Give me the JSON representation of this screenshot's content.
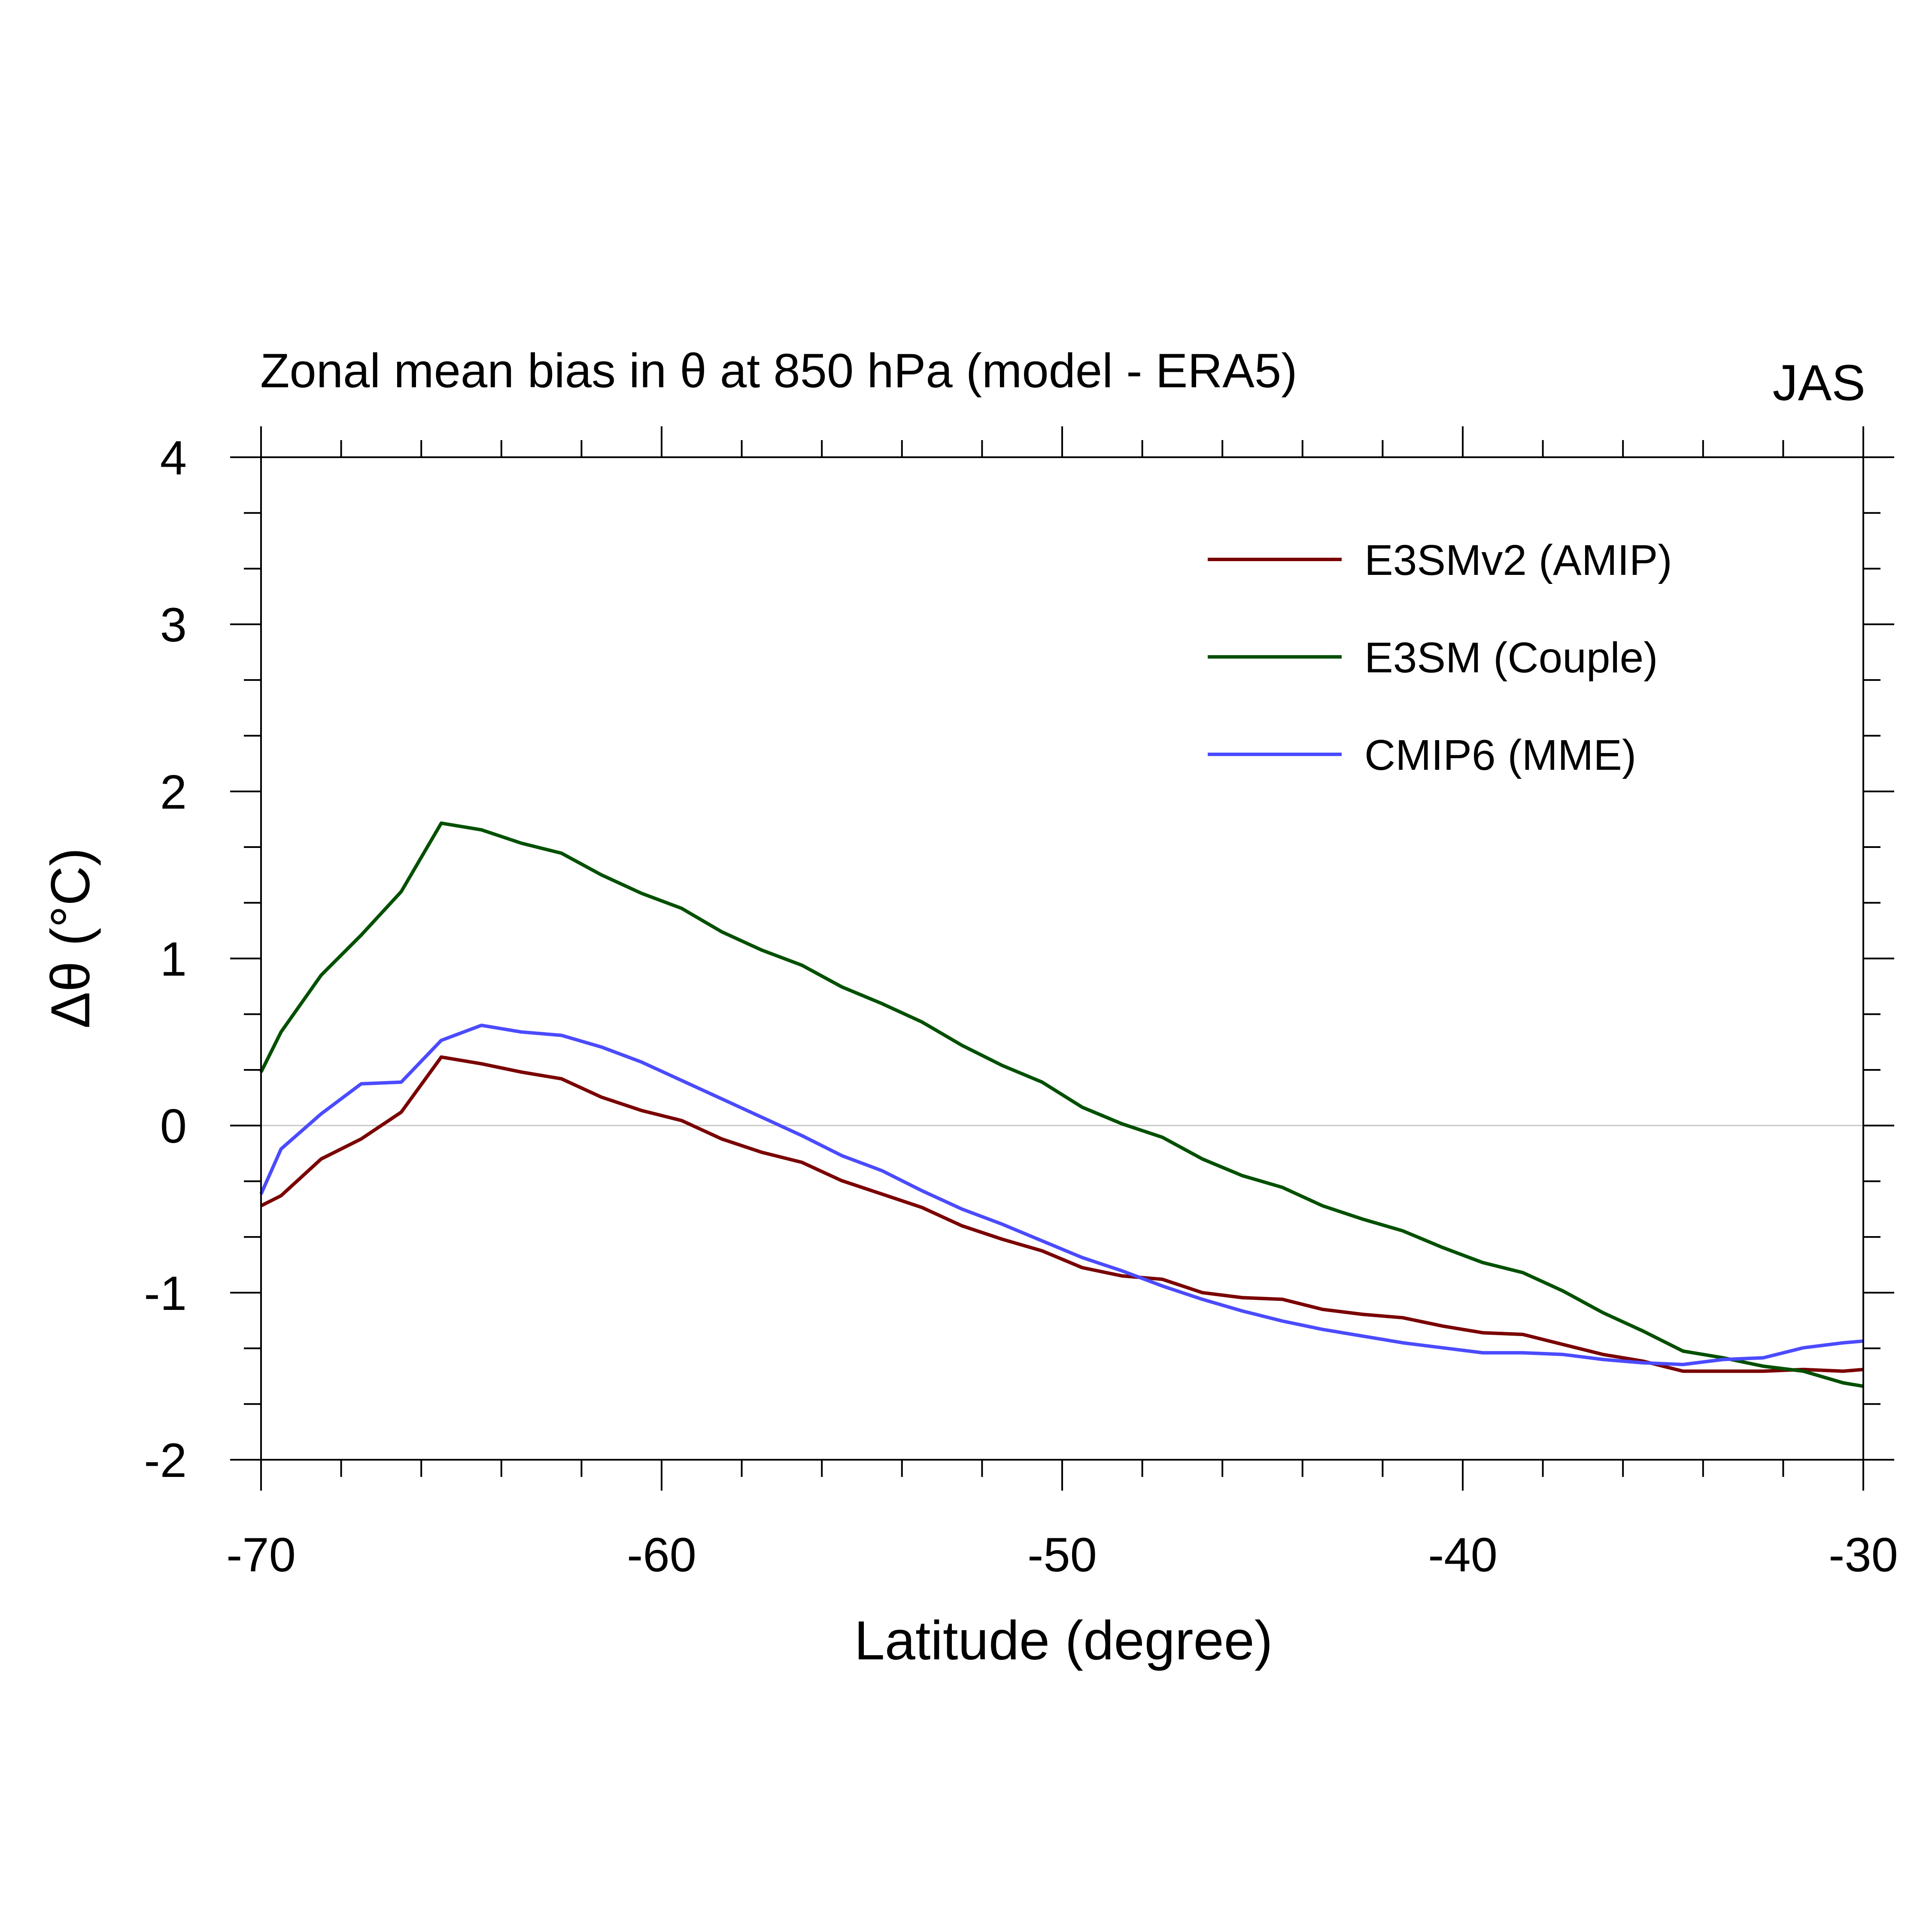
{
  "chart_data": {
    "type": "line",
    "title": "Zonal mean bias in θ at 850 hPa (model - ERA5)",
    "season": "JAS",
    "xlabel": "Latitude (degree)",
    "ylabel": "Δθ (°C)",
    "xlim": [
      -70,
      -30
    ],
    "ylim": [
      -2,
      4
    ],
    "xticks": [
      -70,
      -60,
      -50,
      -40,
      -30
    ],
    "xtick_labels": [
      "-70",
      "-60",
      "-50",
      "-40",
      "-30"
    ],
    "yticks": [
      -2,
      -1,
      0,
      1,
      2,
      3,
      4
    ],
    "ytick_labels": [
      "-2",
      "-1",
      "0",
      "1",
      "2",
      "3",
      "4"
    ],
    "zero_line": true,
    "grid": false,
    "legend_position": "top-right",
    "series": [
      {
        "name": "E3SMv2 (AMIP)",
        "color": "#7a0000",
        "x": [
          -70,
          -69.5,
          -68.5,
          -67.5,
          -66.5,
          -65.5,
          -64.5,
          -63.5,
          -62.5,
          -61.5,
          -60.5,
          -59.5,
          -58.5,
          -57.5,
          -56.5,
          -55.5,
          -54.5,
          -53.5,
          -52.5,
          -51.5,
          -50.5,
          -49.5,
          -48.5,
          -47.5,
          -46.5,
          -45.5,
          -44.5,
          -43.5,
          -42.5,
          -41.5,
          -40.5,
          -39.5,
          -38.5,
          -37.5,
          -36.5,
          -35.5,
          -34.5,
          -33.5,
          -32.5,
          -31.5,
          -30.5,
          -30
        ],
        "values": [
          -0.48,
          -0.42,
          -0.2,
          -0.08,
          0.08,
          0.41,
          0.37,
          0.32,
          0.28,
          0.17,
          0.09,
          0.03,
          -0.08,
          -0.16,
          -0.22,
          -0.33,
          -0.41,
          -0.49,
          -0.6,
          -0.68,
          -0.75,
          -0.85,
          -0.9,
          -0.92,
          -1.0,
          -1.03,
          -1.04,
          -1.1,
          -1.13,
          -1.15,
          -1.2,
          -1.24,
          -1.25,
          -1.31,
          -1.37,
          -1.41,
          -1.47,
          -1.47,
          -1.47,
          -1.46,
          -1.47,
          -1.46
        ]
      },
      {
        "name": "E3SM (Couple)",
        "color": "#005000",
        "x": [
          -70,
          -69.5,
          -68.5,
          -67.5,
          -66.5,
          -65.5,
          -64.5,
          -63.5,
          -62.5,
          -61.5,
          -60.5,
          -59.5,
          -58.5,
          -57.5,
          -56.5,
          -55.5,
          -54.5,
          -53.5,
          -52.5,
          -51.5,
          -50.5,
          -49.5,
          -48.5,
          -47.5,
          -46.5,
          -45.5,
          -44.5,
          -43.5,
          -42.5,
          -41.5,
          -40.5,
          -39.5,
          -38.5,
          -37.5,
          -36.5,
          -35.5,
          -34.5,
          -33.5,
          -32.5,
          -31.5,
          -30.5,
          -30
        ],
        "values": [
          0.32,
          0.56,
          0.9,
          1.14,
          1.4,
          1.81,
          1.77,
          1.69,
          1.63,
          1.5,
          1.39,
          1.3,
          1.16,
          1.05,
          0.96,
          0.83,
          0.73,
          0.62,
          0.48,
          0.36,
          0.26,
          0.11,
          0.01,
          -0.07,
          -0.2,
          -0.3,
          -0.37,
          -0.48,
          -0.56,
          -0.63,
          -0.73,
          -0.82,
          -0.88,
          -0.99,
          -1.12,
          -1.23,
          -1.35,
          -1.39,
          -1.44,
          -1.47,
          -1.54,
          -1.56
        ]
      },
      {
        "name": "CMIP6 (MME)",
        "color": "#4b4bff",
        "x": [
          -70,
          -69.5,
          -68.5,
          -67.5,
          -66.5,
          -65.5,
          -64.5,
          -63.5,
          -62.5,
          -61.5,
          -60.5,
          -59.5,
          -58.5,
          -57.5,
          -56.5,
          -55.5,
          -54.5,
          -53.5,
          -52.5,
          -51.5,
          -50.5,
          -49.5,
          -48.5,
          -47.5,
          -46.5,
          -45.5,
          -44.5,
          -43.5,
          -42.5,
          -41.5,
          -40.5,
          -39.5,
          -38.5,
          -37.5,
          -36.5,
          -35.5,
          -34.5,
          -33.5,
          -32.5,
          -31.5,
          -30.5,
          -30
        ],
        "values": [
          -0.41,
          -0.14,
          0.07,
          0.25,
          0.26,
          0.51,
          0.6,
          0.56,
          0.54,
          0.47,
          0.38,
          0.27,
          0.16,
          0.05,
          -0.06,
          -0.18,
          -0.27,
          -0.39,
          -0.5,
          -0.59,
          -0.69,
          -0.79,
          -0.87,
          -0.96,
          -1.04,
          -1.11,
          -1.17,
          -1.22,
          -1.26,
          -1.3,
          -1.33,
          -1.36,
          -1.36,
          -1.37,
          -1.4,
          -1.42,
          -1.43,
          -1.4,
          -1.39,
          -1.33,
          -1.3,
          -1.29
        ]
      }
    ]
  }
}
